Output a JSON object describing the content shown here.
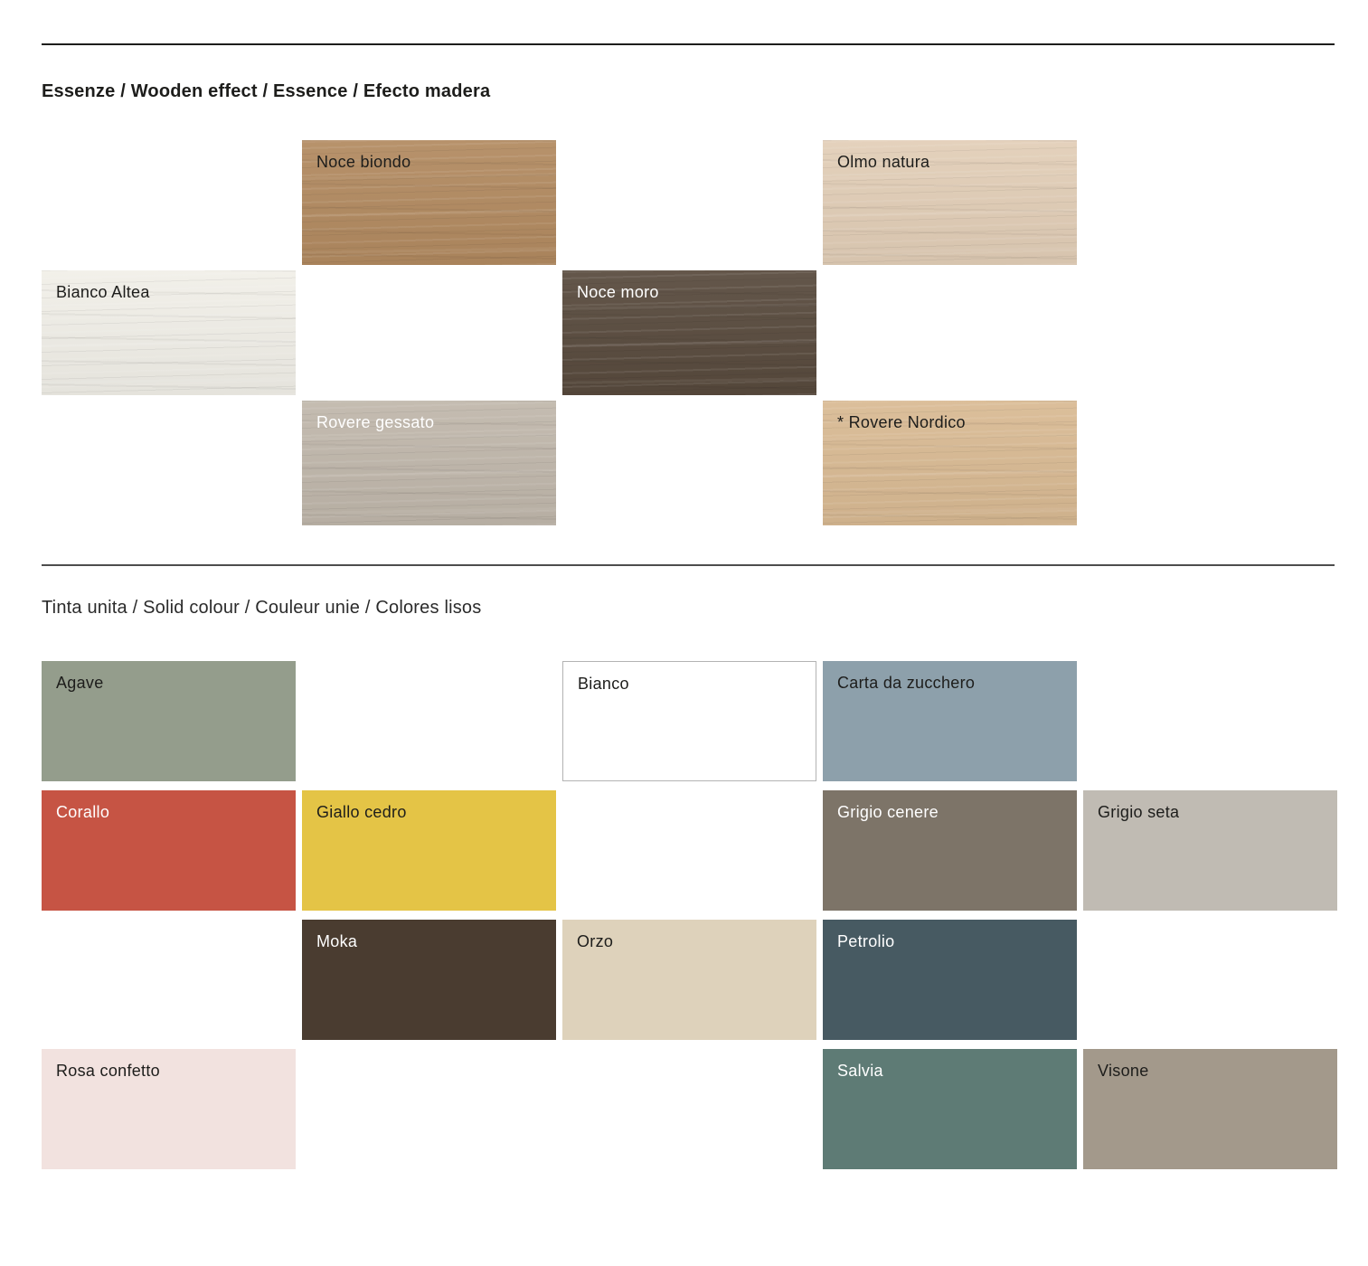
{
  "sections": {
    "wood": {
      "title": "Essenze / Wooden effect / Essence / Efecto madera",
      "swatches": [
        {
          "name": "noce-biondo",
          "label": "Noce biondo",
          "color": "#b28a60",
          "text_color": "#1d1d1b"
        },
        {
          "name": "olmo-natura",
          "label": "Olmo natura",
          "color": "#e2ceb7",
          "text_color": "#1d1d1b"
        },
        {
          "name": "bianco-altea",
          "label": "Bianco Altea",
          "color": "#f1efe8",
          "text_color": "#1d1d1b"
        },
        {
          "name": "noce-moro",
          "label": "Noce moro",
          "color": "#584a3d",
          "text_color": "#ffffff"
        },
        {
          "name": "rovere-gessato",
          "label": "Rovere gessato",
          "color": "#c0b7ab",
          "text_color": "#ffffff"
        },
        {
          "name": "rovere-nordico",
          "label": "* Rovere Nordico",
          "color": "#d9ba93",
          "text_color": "#1d1d1b"
        }
      ]
    },
    "solid": {
      "title": "Tinta unita / Solid colour / Couleur unie / Colores lisos",
      "swatches": [
        {
          "name": "agave",
          "label": "Agave",
          "color": "#949d8c",
          "text_color": "#1d1d1b"
        },
        {
          "name": "bianco",
          "label": "Bianco",
          "color": "#ffffff",
          "text_color": "#1d1d1b",
          "border_color": "#b3b3b3"
        },
        {
          "name": "carta-da-zucchero",
          "label": "Carta da zucchero",
          "color": "#8da0ab",
          "text_color": "#1d1d1b"
        },
        {
          "name": "corallo",
          "label": "Corallo",
          "color": "#c65444",
          "text_color": "#ffffff"
        },
        {
          "name": "giallo-cedro",
          "label": "Giallo cedro",
          "color": "#e4c446",
          "text_color": "#1d1d1b"
        },
        {
          "name": "grigio-cenere",
          "label": "Grigio cenere",
          "color": "#7d7468",
          "text_color": "#ffffff"
        },
        {
          "name": "grigio-seta",
          "label": "Grigio seta",
          "color": "#c0bbb3",
          "text_color": "#1d1d1b"
        },
        {
          "name": "moka",
          "label": "Moka",
          "color": "#4a3c30",
          "text_color": "#ffffff"
        },
        {
          "name": "orzo",
          "label": "Orzo",
          "color": "#ded2bb",
          "text_color": "#1d1d1b"
        },
        {
          "name": "petrolio",
          "label": "Petrolio",
          "color": "#475a62",
          "text_color": "#ffffff"
        },
        {
          "name": "rosa-confetto",
          "label": "Rosa confetto",
          "color": "#f2e2df",
          "text_color": "#1d1d1b"
        },
        {
          "name": "salvia",
          "label": "Salvia",
          "color": "#5e7b75",
          "text_color": "#ffffff"
        },
        {
          "name": "visone",
          "label": "Visone",
          "color": "#a3998b",
          "text_color": "#1d1d1b"
        }
      ]
    }
  }
}
